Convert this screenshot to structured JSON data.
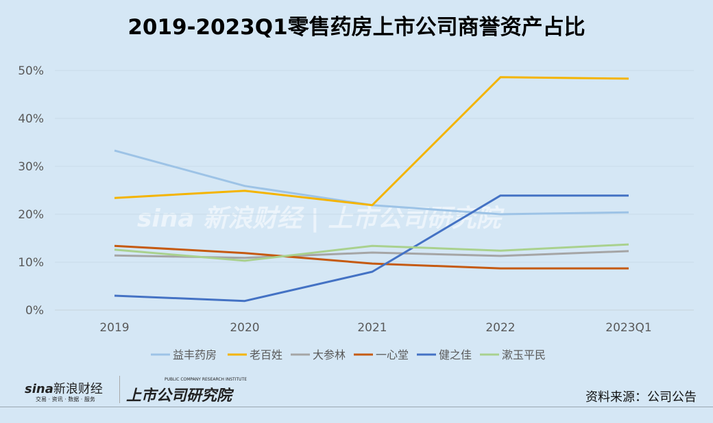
{
  "chart_data": {
    "type": "line",
    "title": "2019-2023Q1零售药房上市公司商誉资产占比",
    "categories": [
      "2019",
      "2020",
      "2021",
      "2022",
      "2023Q1"
    ],
    "yticks": [
      "0%",
      "10%",
      "20%",
      "30%",
      "40%",
      "50%"
    ],
    "ylim": [
      0,
      50
    ],
    "grid": true,
    "legend": "bottom",
    "series": [
      {
        "name": "益丰药房",
        "color": "#9dc3e6",
        "values": [
          33.3,
          25.9,
          21.9,
          20.0,
          20.4
        ]
      },
      {
        "name": "老百姓",
        "color": "#f4b400",
        "values": [
          23.4,
          24.9,
          21.9,
          48.6,
          48.3
        ]
      },
      {
        "name": "大参林",
        "color": "#a5a5a5",
        "values": [
          11.4,
          10.9,
          12.0,
          11.3,
          12.3
        ]
      },
      {
        "name": "一心堂",
        "color": "#c55a11",
        "values": [
          13.4,
          11.9,
          9.7,
          8.7,
          8.7
        ]
      },
      {
        "name": "健之佳",
        "color": "#4472c4",
        "values": [
          3.0,
          1.9,
          8.0,
          23.9,
          23.9
        ]
      },
      {
        "name": "漱玉平民",
        "color": "#a9d18e",
        "values": [
          12.6,
          10.3,
          13.4,
          12.4,
          13.7
        ]
      }
    ]
  },
  "footer": {
    "source": "资料来源：公司公告",
    "sina_logo": "sina新浪财经",
    "sina_tagline": "交易 · 资讯 · 数据 · 服务",
    "institute_logo": "上市公司研究院",
    "institute_en": "PUBLIC COMPANY RESEARCH INSTITUTE"
  }
}
